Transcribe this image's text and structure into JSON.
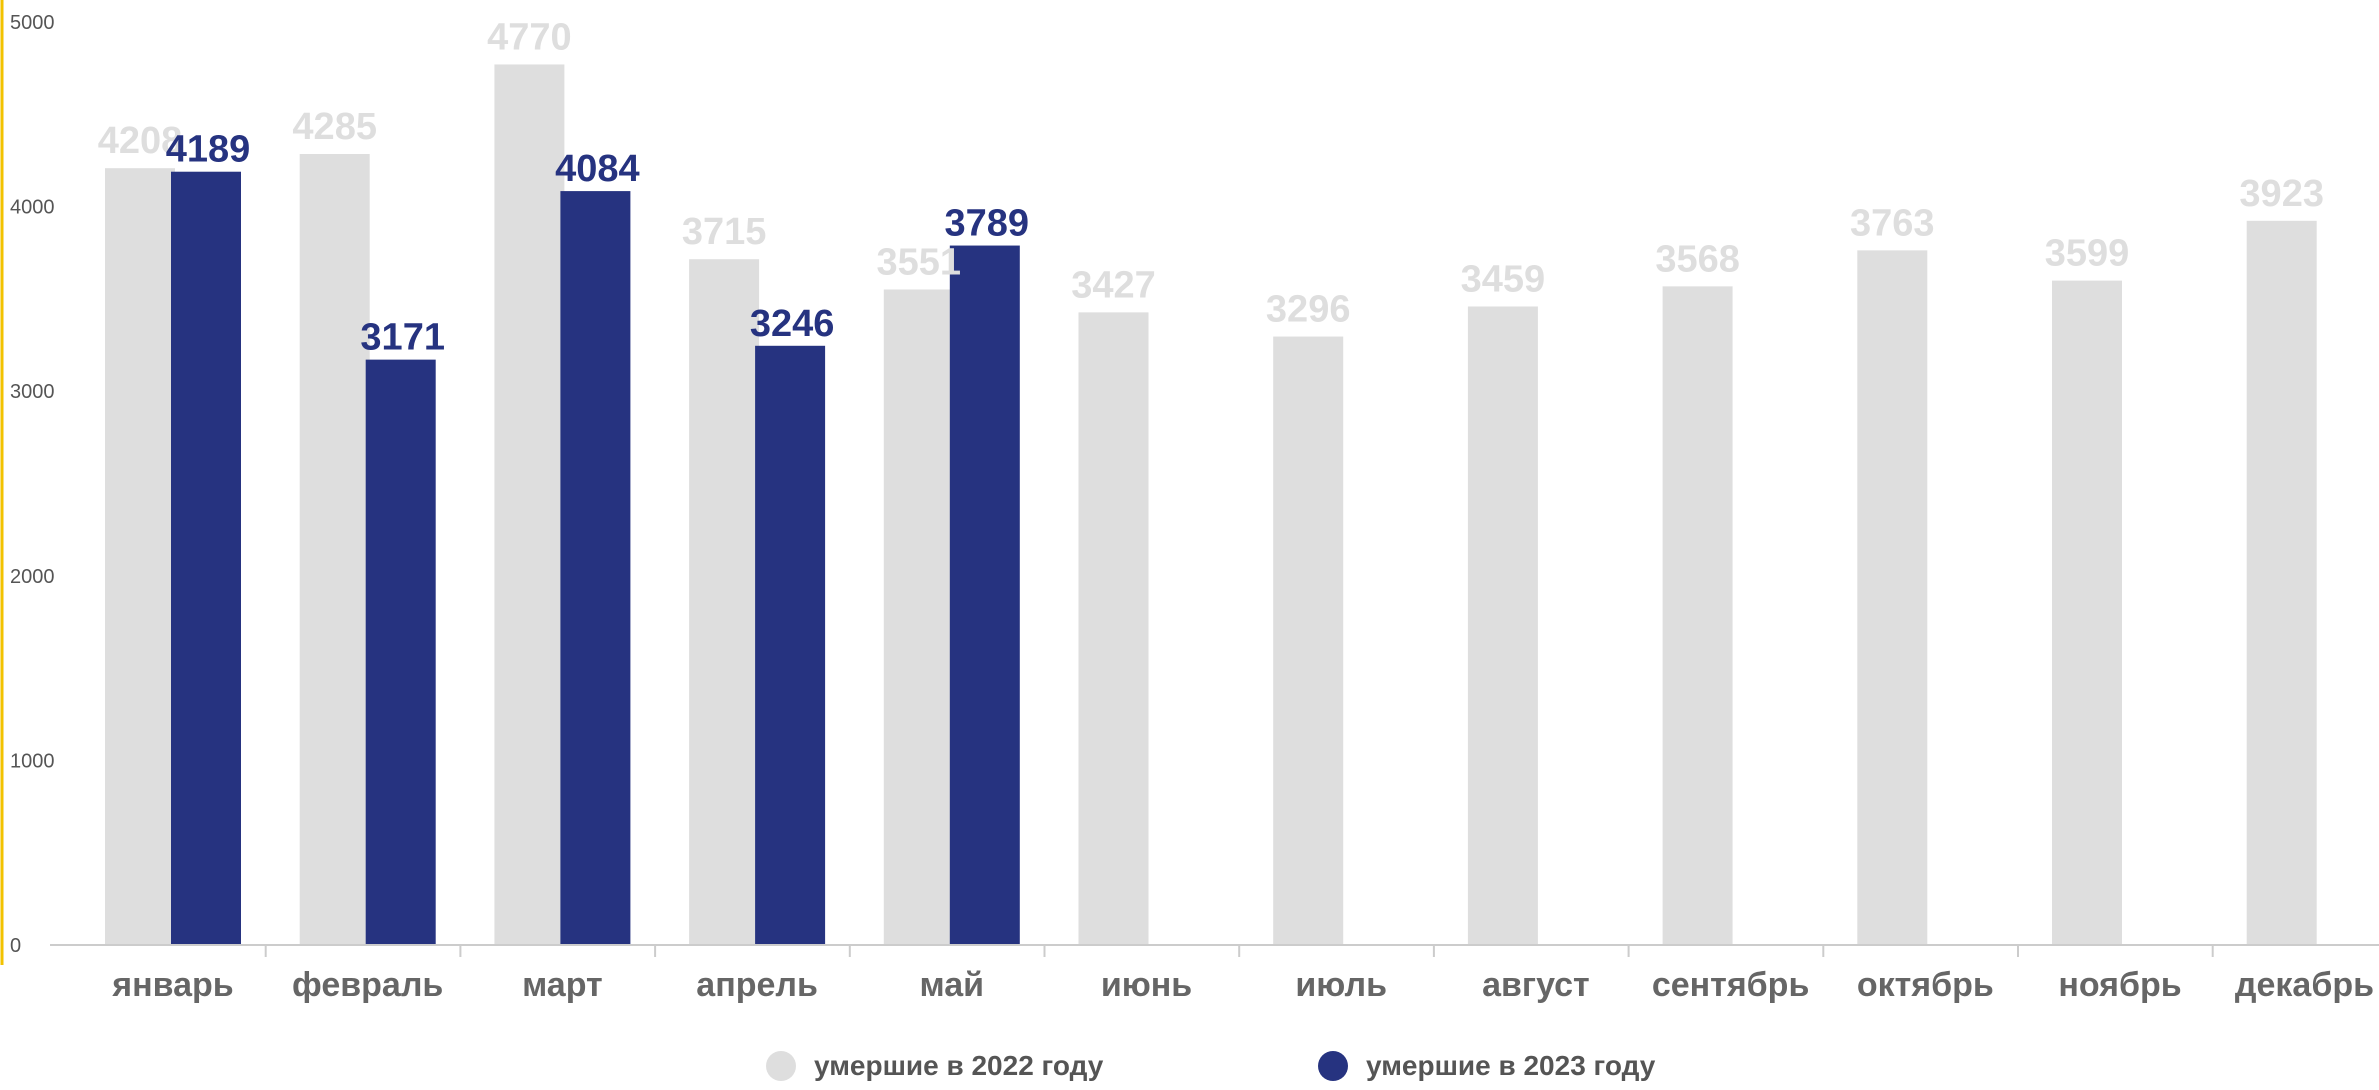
{
  "colors": {
    "series_2022": "#dedede",
    "series_2023": "#263380",
    "axis_accent": "#f2c200",
    "baseline": "#cccccc"
  },
  "chart_data": {
    "type": "bar",
    "title": "",
    "xlabel": "",
    "ylabel": "",
    "ylim": [
      0,
      5000
    ],
    "yticks": [
      0,
      1000,
      2000,
      3000,
      4000,
      5000
    ],
    "grid": false,
    "legend_position": "bottom",
    "categories": [
      "январь",
      "февраль",
      "март",
      "апрель",
      "май",
      "июнь",
      "июль",
      "август",
      "сентябрь",
      "октябрь",
      "ноябрь",
      "декабрь"
    ],
    "series": [
      {
        "name": "умершие в 2022 году",
        "values": [
          4208,
          4285,
          4770,
          3715,
          3551,
          3427,
          3296,
          3459,
          3568,
          3763,
          3599,
          3923
        ]
      },
      {
        "name": "умершие в 2023 году",
        "values": [
          4189,
          3171,
          4084,
          3246,
          3789,
          null,
          null,
          null,
          null,
          null,
          null,
          null
        ]
      }
    ]
  }
}
